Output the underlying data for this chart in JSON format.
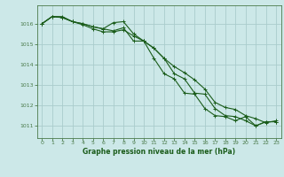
{
  "bg_color": "#cce8e8",
  "grid_color": "#aacccc",
  "line_color": "#1a5c1a",
  "marker_color": "#1a5c1a",
  "xlabel": "Graphe pression niveau de la mer (hPa)",
  "xlabel_color": "#1a5c1a",
  "axis_color": "#4a7a4a",
  "ylim": [
    1010.4,
    1016.9
  ],
  "xlim": [
    -0.5,
    23.5
  ],
  "yticks": [
    1011,
    1012,
    1013,
    1014,
    1015,
    1016
  ],
  "xticks": [
    0,
    1,
    2,
    3,
    4,
    5,
    6,
    7,
    8,
    9,
    10,
    11,
    12,
    13,
    14,
    15,
    16,
    17,
    18,
    19,
    20,
    21,
    22,
    23
  ],
  "series": [
    [
      1016.0,
      1016.35,
      1016.35,
      1016.1,
      1016.0,
      1015.85,
      1015.75,
      1015.65,
      1015.8,
      1015.15,
      1015.15,
      1014.3,
      1013.55,
      1013.3,
      1012.6,
      1012.55,
      1011.85,
      1011.5,
      1011.45,
      1011.25,
      1011.45,
      1011.0,
      1011.2,
      1011.2
    ],
    [
      1016.0,
      1016.35,
      1016.3,
      1016.1,
      1016.0,
      1015.85,
      1015.75,
      1016.05,
      1016.1,
      1015.5,
      1015.15,
      1014.8,
      1014.3,
      1013.55,
      1013.3,
      1012.6,
      1012.55,
      1011.85,
      1011.5,
      1011.45,
      1011.25,
      1011.0,
      1011.2,
      1011.2
    ],
    [
      1016.0,
      1016.35,
      1016.3,
      1016.1,
      1015.95,
      1015.75,
      1015.6,
      1015.6,
      1015.7,
      1015.4,
      1015.15,
      1014.8,
      1014.3,
      1013.9,
      1013.6,
      1013.25,
      1012.8,
      1012.15,
      1011.9,
      1011.8,
      1011.5,
      1011.35,
      1011.15,
      1011.25
    ]
  ]
}
